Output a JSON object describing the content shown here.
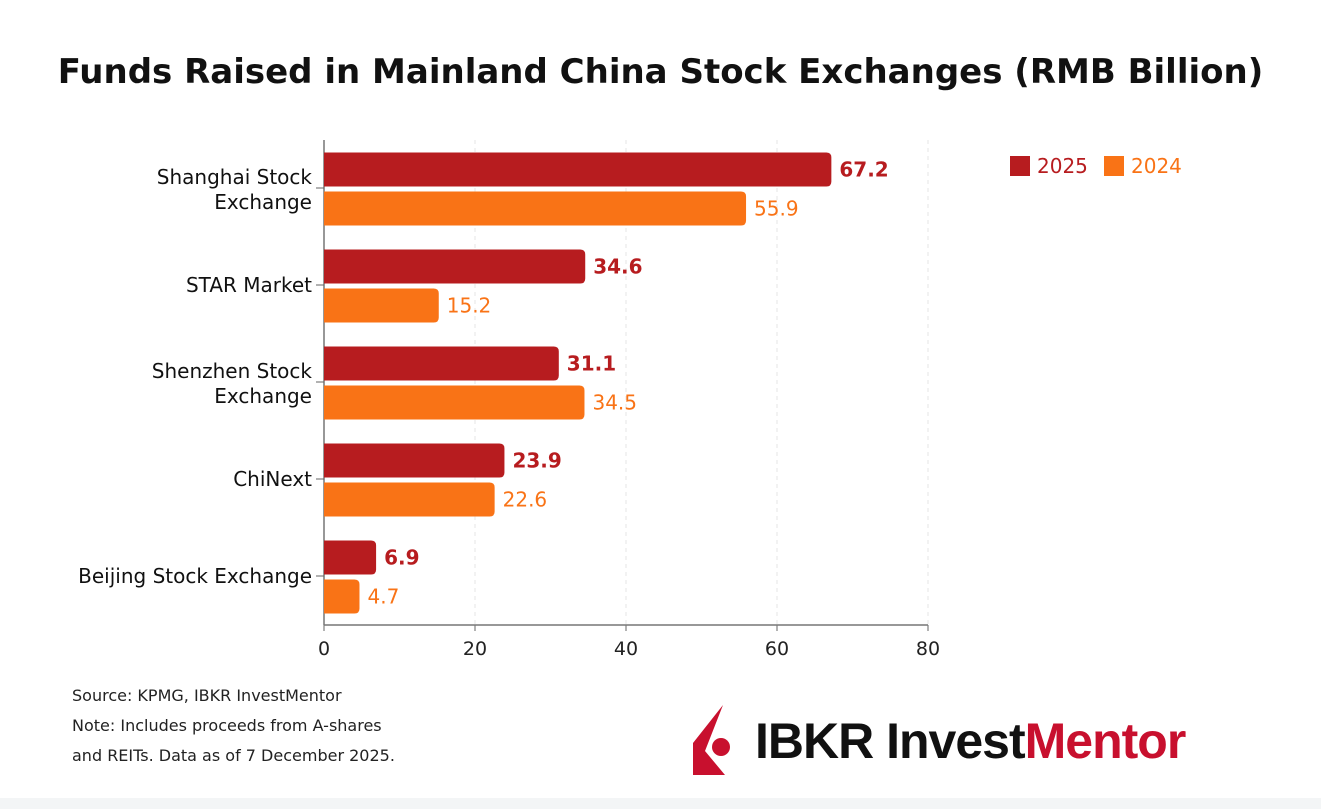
{
  "chart_data": {
    "type": "bar",
    "orientation": "horizontal",
    "title": "Funds Raised in Mainland China Stock Exchanges (RMB Billion)",
    "categories": [
      "Shanghai Stock Exchange",
      "STAR Market",
      "Shenzhen Stock Exchange",
      "ChiNext",
      "Beijing Stock Exchange"
    ],
    "category_lines": [
      [
        "Shanghai Stock",
        "Exchange"
      ],
      [
        "STAR Market"
      ],
      [
        "Shenzhen Stock",
        "Exchange"
      ],
      [
        "ChiNext"
      ],
      [
        "Beijing Stock Exchange"
      ]
    ],
    "series": [
      {
        "name": "2025",
        "color": "#b71c1f",
        "values": [
          67.2,
          34.6,
          31.1,
          23.9,
          6.9
        ]
      },
      {
        "name": "2024",
        "color": "#f97316",
        "values": [
          55.9,
          15.2,
          34.5,
          22.6,
          4.7
        ]
      }
    ],
    "xlim": [
      0,
      80
    ],
    "xticks": [
      0,
      20,
      40,
      60,
      80
    ],
    "grid": true,
    "legend": "top-right",
    "data_labels": true
  },
  "notes": {
    "source": "Source: KPMG, IBKR InvestMentor",
    "note_line1": "Note: Includes proceeds from A-shares",
    "note_line2": "and REITs. Data as of 7 December 2025."
  },
  "logo": {
    "part1": "IBKR Invest",
    "part2": "Mentor",
    "color_dark": "#111111",
    "color_red": "#c8102e"
  }
}
